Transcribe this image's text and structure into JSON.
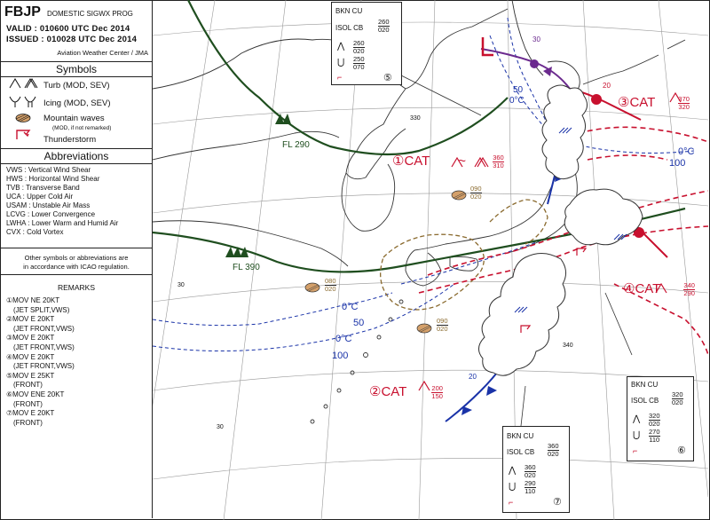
{
  "header": {
    "code": "FBJP",
    "product": "DOMESTIC SIGWX PROG",
    "valid": "VALID : 010600 UTC Dec 2014",
    "issued": "ISSUED : 010028 UTC Dec 2014",
    "source": "Aviation Weather Center / JMA"
  },
  "symbols": {
    "title": "Symbols",
    "items": [
      {
        "icon": "turbulence-icon",
        "label": "Turb (MOD, SEV)"
      },
      {
        "icon": "icing-icon",
        "label": "Icing (MOD, SEV)"
      },
      {
        "icon": "mountain-wave-icon",
        "label": "Mountain waves",
        "sub1": "(MOD, if not remarked)"
      },
      {
        "icon": "thunderstorm-icon",
        "label": "Thunderstorm"
      }
    ]
  },
  "abbreviations": {
    "title": "Abbreviations",
    "items": [
      "VWS : Vertical Wind Shear",
      "HWS : Horizontal Wind Shear",
      "TVB : Transverse Band",
      "UCA : Upper Cold Air",
      "USAM : Unstable Air Mass",
      "LCVG : Lower Convergence",
      "LWHA : Lower Warm and Humid Air",
      "CVX : Cold Vortex"
    ],
    "note1": "Other symbols or abbreviations are",
    "note2": "in accordance with ICAO regulation."
  },
  "remarks": {
    "title": "REMARKS",
    "items": [
      "①MOV NE 20KT",
      "(JET SPLIT,VWS)",
      "②MOV E 20KT",
      "(JET FRONT,VWS)",
      "③MOV E 20KT",
      "(JET FRONT,VWS)",
      "④MOV E 20KT",
      "(JET FRONT,VWS)",
      "⑤MOV E 25KT",
      "(FRONT)",
      "⑥MOV ENE 20KT",
      "(FRONT)",
      "⑦MOV E 20KT",
      "(FRONT)"
    ]
  },
  "boxes": {
    "b5": {
      "cloud": "BKN CU",
      "cb": "ISOL CB",
      "cb_top": "260",
      "cb_base": "020",
      "turb_top": "260",
      "turb_base": "020",
      "ice_top": "250",
      "ice_base": "070",
      "num": "⑤"
    },
    "b6": {
      "cloud": "BKN CU",
      "cb": "ISOL CB",
      "cb_top": "320",
      "cb_base": "020",
      "turb_top": "320",
      "turb_base": "020",
      "ice_top": "270",
      "ice_base": "110",
      "num": "⑥"
    },
    "b7": {
      "cloud": "BKN CU",
      "cb": "ISOL CB",
      "cb_top": "360",
      "cb_base": "020",
      "turb_top": "360",
      "turb_base": "020",
      "ice_top": "290",
      "ice_base": "110",
      "num": "⑦"
    }
  },
  "cat_labels": {
    "c1": {
      "text": "①CAT",
      "tilde": "~",
      "top": "360",
      "base": "310"
    },
    "c2": {
      "text": "②CAT",
      "top": "200",
      "base": "150"
    },
    "c3": {
      "text": "③CAT",
      "top": "370",
      "base": "320"
    },
    "c4": {
      "text": "④CAT",
      "top": "340",
      "base": "290"
    }
  },
  "map_labels": {
    "fl290": "FL 290",
    "fl390": "FL 390",
    "iso_0c_a": "0°C",
    "iso_50_a": "50",
    "iso_0c_b": "0°C",
    "iso_50_b": "50",
    "iso_0c_c": "0°C",
    "iso_100_c": "100",
    "iso_0c_d": "0°C",
    "iso_100_d": "100",
    "mw1_top": "090",
    "mw1_base": "020",
    "mw2_top": "080",
    "mw2_base": "020",
    "mw3_top": "090",
    "mw3_base": "020",
    "spd_20_a": "20",
    "spd_20_b": "20",
    "spd_30": "30",
    "h330": "330",
    "h340": "340",
    "h30a": "30",
    "h30b": "30"
  },
  "colors": {
    "jet": "#1f4e1f",
    "cat": "#c8102e",
    "front_cold": "#1a33a8",
    "front_warm": "#c8102e",
    "occluded": "#6b2a8e",
    "freezing": "#1a33a8",
    "mountain_wave": "#8a6a2e",
    "grid": "#999999"
  }
}
